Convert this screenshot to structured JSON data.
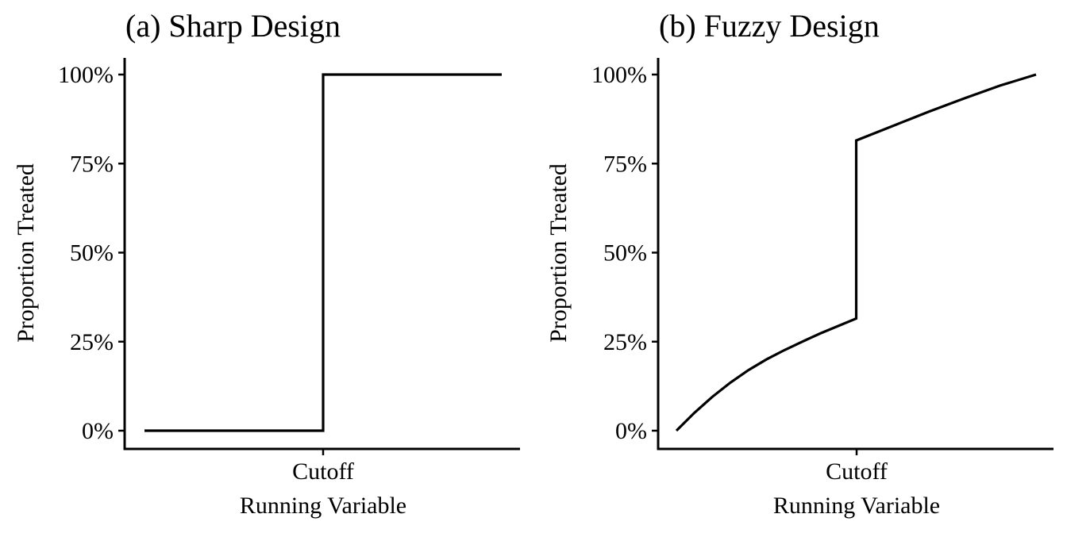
{
  "chart_data": [
    {
      "type": "line",
      "title": "(a) Sharp Design",
      "xlabel": "Running Variable",
      "ylabel": "Proportion Treated",
      "x_tick_labels": [
        "Cutoff"
      ],
      "y_ticks": [
        0,
        25,
        50,
        75,
        100
      ],
      "y_tick_labels": [
        "0%",
        "25%",
        "50%",
        "75%",
        "100%"
      ],
      "ylim": [
        0,
        100
      ],
      "xlim": [
        -1,
        1
      ],
      "cutoff": 0,
      "grid": false,
      "legend": "none",
      "series": [
        {
          "x": [
            -1,
            0,
            0,
            1
          ],
          "y": [
            0,
            0,
            100,
            100
          ]
        }
      ]
    },
    {
      "type": "line",
      "title": "(b) Fuzzy Design",
      "xlabel": "Running Variable",
      "ylabel": "Proportion Treated",
      "x_tick_labels": [
        "Cutoff"
      ],
      "y_ticks": [
        0,
        25,
        50,
        75,
        100
      ],
      "y_tick_labels": [
        "0%",
        "25%",
        "50%",
        "75%",
        "100%"
      ],
      "ylim": [
        0,
        100
      ],
      "xlim": [
        -1,
        1
      ],
      "cutoff": 0,
      "grid": false,
      "legend": "none",
      "series": [
        {
          "x": [
            -1,
            -0.9,
            -0.8,
            -0.7,
            -0.6,
            -0.5,
            -0.4,
            -0.3,
            -0.2,
            -0.1,
            0,
            0,
            0.2,
            0.4,
            0.6,
            0.8,
            1
          ],
          "y": [
            0,
            5,
            9.5,
            13.5,
            17,
            20,
            22.6,
            25,
            27.3,
            29.4,
            31.5,
            81.5,
            85.5,
            89.5,
            93.3,
            96.9,
            100
          ]
        }
      ]
    }
  ]
}
